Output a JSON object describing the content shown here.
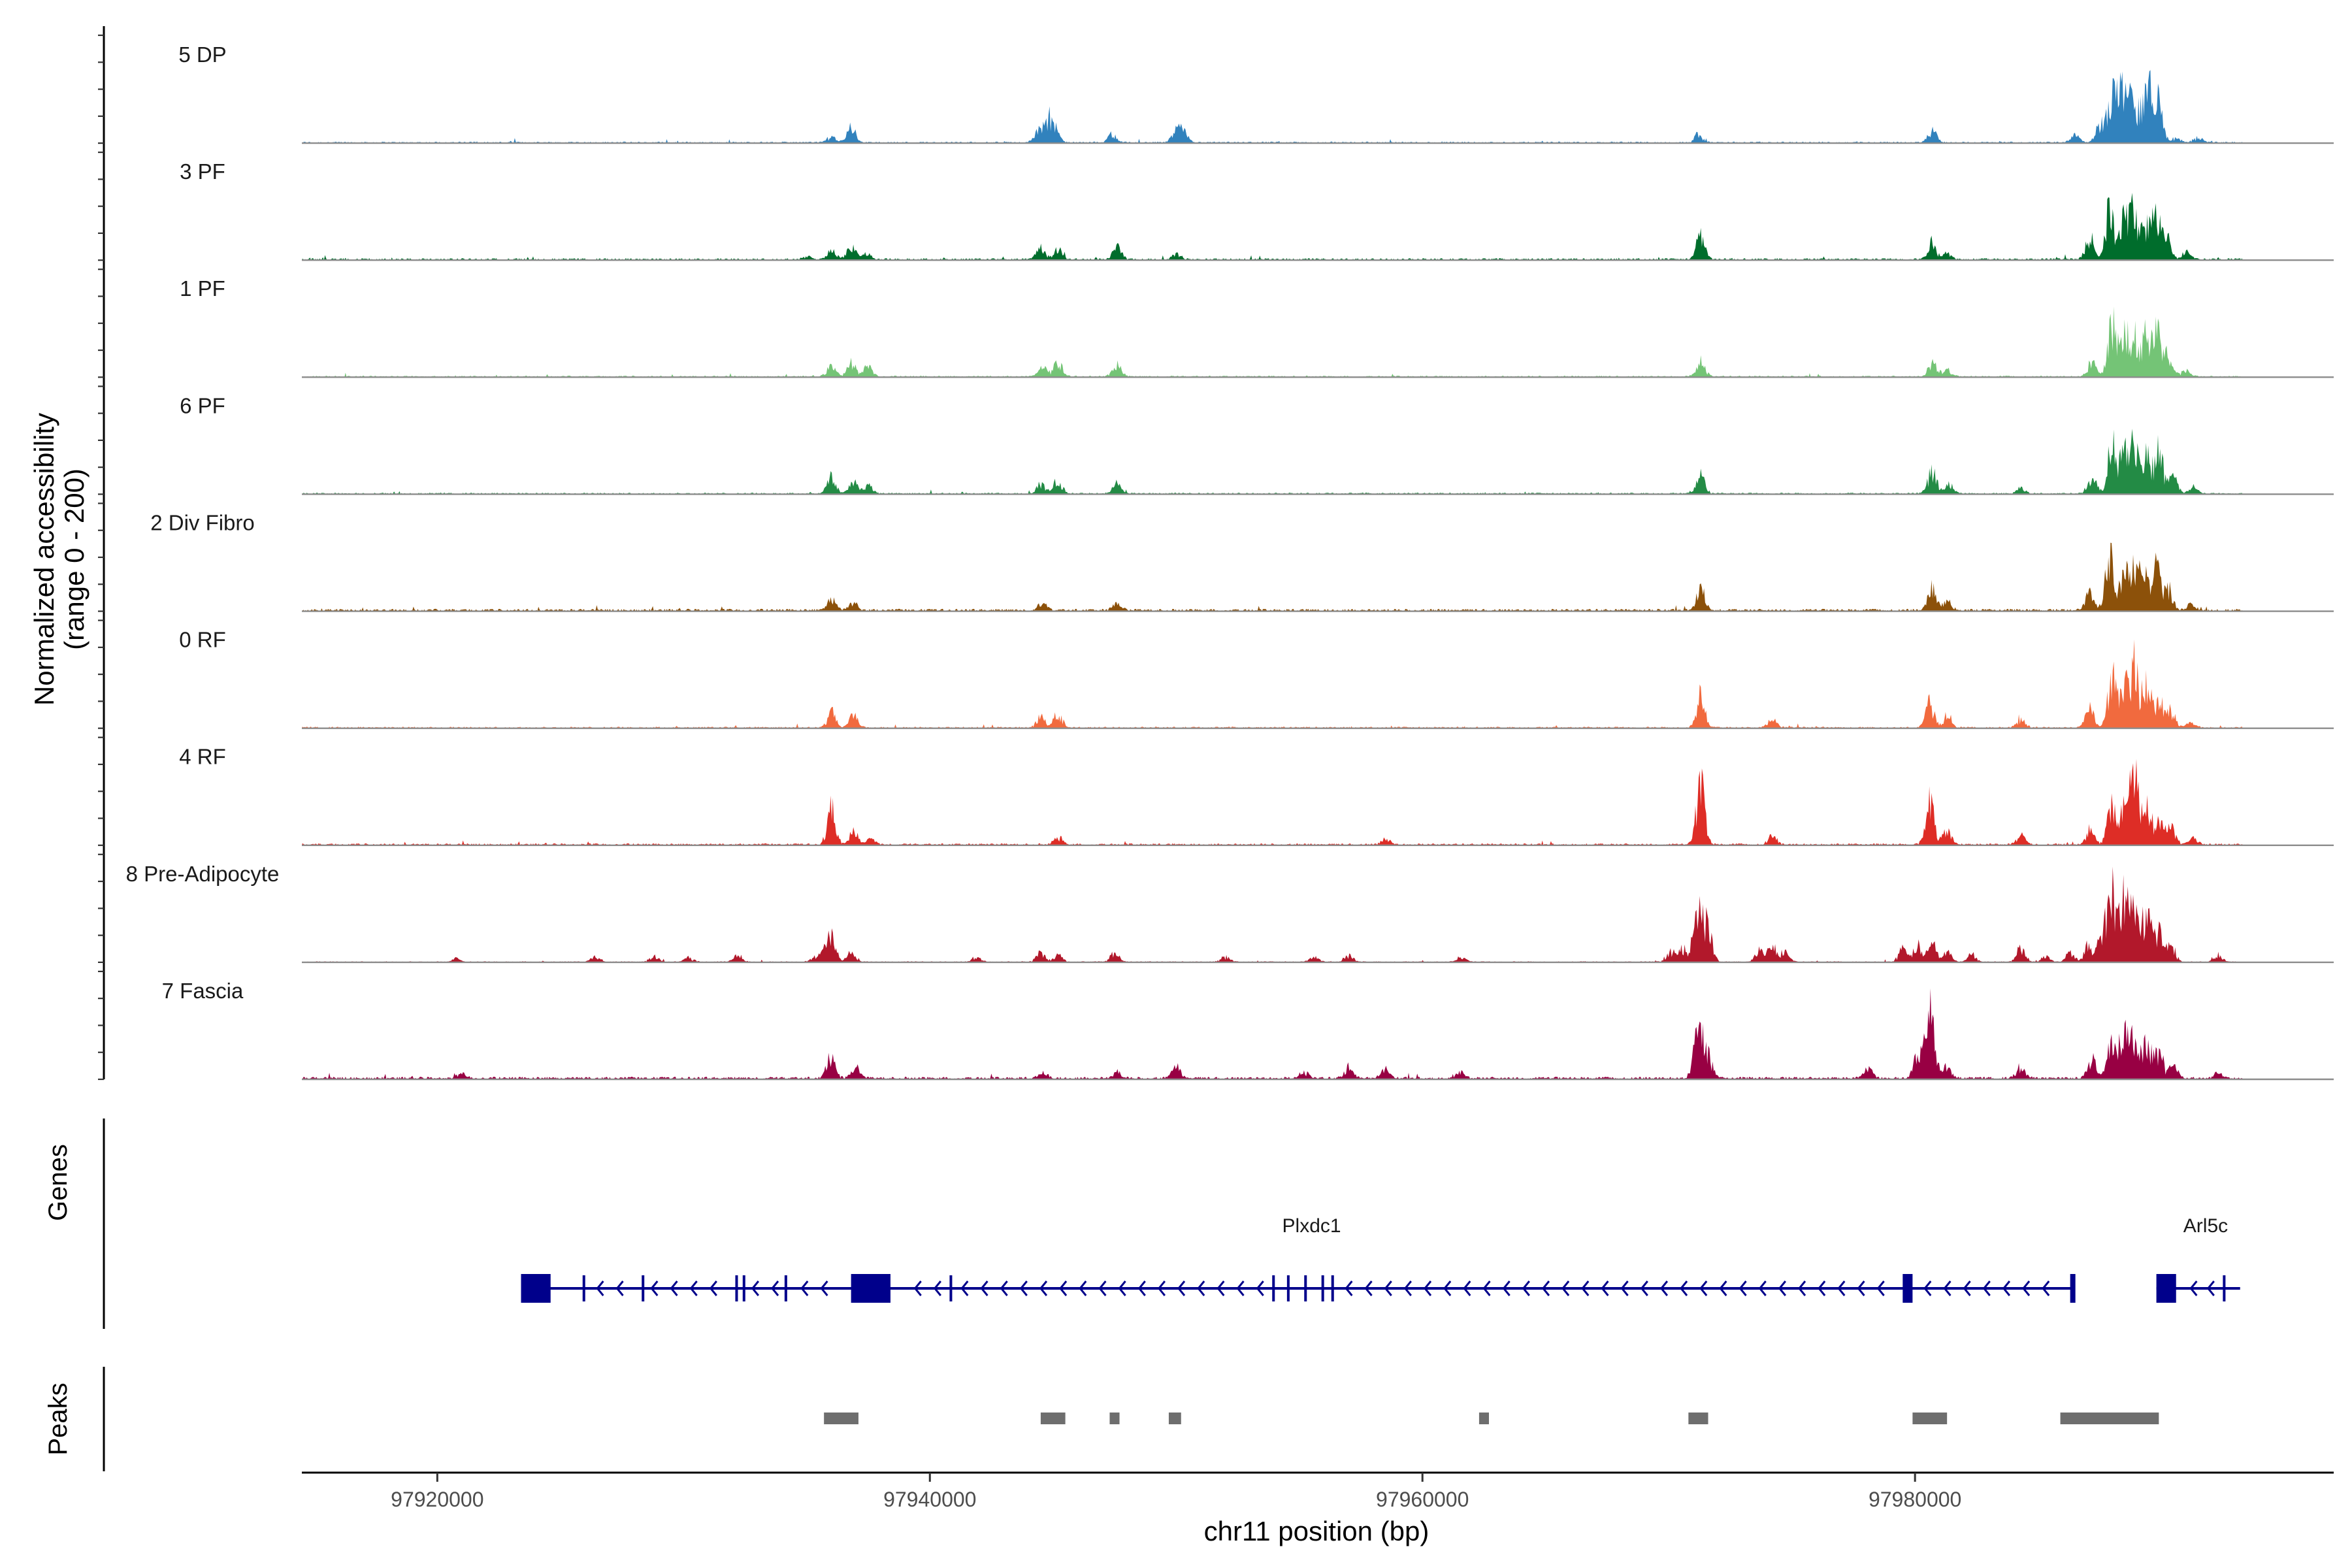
{
  "chart_data": {
    "type": "area",
    "xlabel": "chr11 position (bp)",
    "ylabel_line1": "Normalized accessibility",
    "ylabel_line2": "(range 0 - 200)",
    "y_range": [
      0,
      200
    ],
    "x_range": [
      97914500,
      97997000
    ],
    "x_ticks": [
      97920000,
      97940000,
      97960000,
      97980000
    ],
    "x_tick_labels": [
      "97920000",
      "97940000",
      "97960000",
      "97980000"
    ],
    "grid": false,
    "legend": "none",
    "panels": {
      "genes_title": "Genes",
      "peaks_title": "Peaks"
    },
    "series": [
      {
        "name": "5 DP",
        "color": "#3182bd",
        "noise": 0.9,
        "peaks": [
          [
            97936000,
            12
          ],
          [
            97936800,
            32
          ],
          [
            97944400,
            20
          ],
          [
            97944800,
            44
          ],
          [
            97945100,
            18
          ],
          [
            97947400,
            14
          ],
          [
            97950000,
            18
          ],
          [
            97950300,
            20
          ],
          [
            97971200,
            14
          ],
          [
            97980700,
            22
          ],
          [
            97986500,
            14
          ],
          [
            97987500,
            32
          ],
          [
            97988000,
            92
          ],
          [
            97988400,
            78
          ],
          [
            97988700,
            96
          ],
          [
            97989200,
            66
          ],
          [
            97989600,
            98
          ],
          [
            97989900,
            56
          ],
          [
            97990600,
            8
          ],
          [
            97991500,
            10
          ]
        ]
      },
      {
        "name": "3 PF",
        "color": "#006d2c",
        "noise": 1.1,
        "peaks": [
          [
            97935000,
            6
          ],
          [
            97936000,
            18
          ],
          [
            97936800,
            22
          ],
          [
            97937400,
            12
          ],
          [
            97944500,
            20
          ],
          [
            97945200,
            18
          ],
          [
            97947600,
            22
          ],
          [
            97950000,
            10
          ],
          [
            97971300,
            44
          ],
          [
            97980700,
            30
          ],
          [
            97981300,
            12
          ],
          [
            97987100,
            40
          ],
          [
            97987900,
            90
          ],
          [
            97988500,
            78
          ],
          [
            97988900,
            84
          ],
          [
            97989400,
            64
          ],
          [
            97989800,
            70
          ],
          [
            97990200,
            44
          ],
          [
            97991000,
            14
          ]
        ]
      },
      {
        "name": "1 PF",
        "color": "#74c476",
        "noise": 0.9,
        "peaks": [
          [
            97936000,
            20
          ],
          [
            97936800,
            26
          ],
          [
            97937500,
            22
          ],
          [
            97944600,
            18
          ],
          [
            97945200,
            28
          ],
          [
            97947600,
            22
          ],
          [
            97971300,
            30
          ],
          [
            97980700,
            26
          ],
          [
            97981300,
            12
          ],
          [
            97987200,
            28
          ],
          [
            97988000,
            96
          ],
          [
            97988500,
            80
          ],
          [
            97988900,
            76
          ],
          [
            97989400,
            74
          ],
          [
            97989800,
            86
          ],
          [
            97990300,
            40
          ],
          [
            97991000,
            12
          ]
        ]
      },
      {
        "name": "6 PF",
        "color": "#238b45",
        "noise": 0.9,
        "peaks": [
          [
            97936000,
            30
          ],
          [
            97936900,
            24
          ],
          [
            97937500,
            16
          ],
          [
            97944500,
            18
          ],
          [
            97945200,
            24
          ],
          [
            97947600,
            18
          ],
          [
            97971300,
            34
          ],
          [
            97980700,
            42
          ],
          [
            97981400,
            16
          ],
          [
            97984300,
            10
          ],
          [
            97987200,
            28
          ],
          [
            97988000,
            90
          ],
          [
            97988500,
            72
          ],
          [
            97988900,
            80
          ],
          [
            97989400,
            66
          ],
          [
            97989900,
            84
          ],
          [
            97990500,
            30
          ],
          [
            97991300,
            12
          ]
        ]
      },
      {
        "name": "2 Div Fibro",
        "color": "#8c510a",
        "noise": 1.4,
        "peaks": [
          [
            97936000,
            20
          ],
          [
            97936900,
            14
          ],
          [
            97944600,
            14
          ],
          [
            97947600,
            12
          ],
          [
            97971300,
            42
          ],
          [
            97980700,
            40
          ],
          [
            97981300,
            16
          ],
          [
            97987100,
            34
          ],
          [
            97987900,
            96
          ],
          [
            97988500,
            76
          ],
          [
            97988900,
            72
          ],
          [
            97989300,
            68
          ],
          [
            97989800,
            74
          ],
          [
            97990300,
            38
          ],
          [
            97991200,
            10
          ]
        ]
      },
      {
        "name": "0 RF",
        "color": "#f16a3e",
        "noise": 0.9,
        "peaks": [
          [
            97936000,
            28
          ],
          [
            97936900,
            22
          ],
          [
            97944500,
            18
          ],
          [
            97945200,
            28
          ],
          [
            97971300,
            62
          ],
          [
            97974200,
            16
          ],
          [
            97980600,
            44
          ],
          [
            97981300,
            22
          ],
          [
            97984300,
            16
          ],
          [
            97987100,
            36
          ],
          [
            97988000,
            92
          ],
          [
            97988500,
            76
          ],
          [
            97988900,
            110
          ],
          [
            97989400,
            86
          ],
          [
            97989900,
            52
          ],
          [
            97990400,
            30
          ],
          [
            97991200,
            10
          ]
        ]
      },
      {
        "name": "4 RF",
        "color": "#de2d26",
        "noise": 1.1,
        "peaks": [
          [
            97936000,
            64
          ],
          [
            97936900,
            24
          ],
          [
            97937600,
            10
          ],
          [
            97945200,
            14
          ],
          [
            97958500,
            10
          ],
          [
            97971300,
            116
          ],
          [
            97974200,
            16
          ],
          [
            97980600,
            78
          ],
          [
            97981300,
            26
          ],
          [
            97984300,
            16
          ],
          [
            97987100,
            28
          ],
          [
            97988000,
            80
          ],
          [
            97988500,
            66
          ],
          [
            97988900,
            122
          ],
          [
            97989400,
            76
          ],
          [
            97989900,
            52
          ],
          [
            97990400,
            30
          ],
          [
            97991300,
            12
          ]
        ]
      },
      {
        "name": "8 Pre-Adipocyte",
        "color": "#b2182b",
        "noise": 0.6,
        "peaks": [
          [
            97920800,
            6
          ],
          [
            97926400,
            10
          ],
          [
            97928800,
            10
          ],
          [
            97930200,
            8
          ],
          [
            97932200,
            12
          ],
          [
            97935300,
            8
          ],
          [
            97935700,
            14
          ],
          [
            97936000,
            46
          ],
          [
            97936800,
            16
          ],
          [
            97941900,
            10
          ],
          [
            97944500,
            16
          ],
          [
            97945200,
            12
          ],
          [
            97947500,
            18
          ],
          [
            97952000,
            10
          ],
          [
            97955600,
            10
          ],
          [
            97957000,
            12
          ],
          [
            97961600,
            10
          ],
          [
            97970100,
            18
          ],
          [
            97970600,
            24
          ],
          [
            97971200,
            120
          ],
          [
            97971600,
            56
          ],
          [
            97973700,
            22
          ],
          [
            97974200,
            28
          ],
          [
            97974700,
            18
          ],
          [
            97979500,
            22
          ],
          [
            97980100,
            30
          ],
          [
            97980700,
            34
          ],
          [
            97981300,
            18
          ],
          [
            97982300,
            14
          ],
          [
            97984300,
            28
          ],
          [
            97985300,
            10
          ],
          [
            97986300,
            16
          ],
          [
            97987000,
            26
          ],
          [
            97987600,
            56
          ],
          [
            97988000,
            128
          ],
          [
            97988500,
            112
          ],
          [
            97988900,
            104
          ],
          [
            97989400,
            90
          ],
          [
            97989900,
            58
          ],
          [
            97990400,
            30
          ],
          [
            97992300,
            14
          ]
        ]
      },
      {
        "name": "7 Fascia",
        "color": "#980043",
        "noise": 1.5,
        "peaks": [
          [
            97921000,
            8
          ],
          [
            97936000,
            46
          ],
          [
            97937000,
            20
          ],
          [
            97944600,
            10
          ],
          [
            97947600,
            12
          ],
          [
            97950000,
            20
          ],
          [
            97955200,
            12
          ],
          [
            97957000,
            22
          ],
          [
            97958500,
            18
          ],
          [
            97961500,
            12
          ],
          [
            97971200,
            106
          ],
          [
            97971600,
            40
          ],
          [
            97978100,
            20
          ],
          [
            97980100,
            40
          ],
          [
            97980600,
            126
          ],
          [
            97981300,
            28
          ],
          [
            97984300,
            24
          ],
          [
            97987200,
            42
          ],
          [
            97988000,
            92
          ],
          [
            97988500,
            86
          ],
          [
            97988900,
            68
          ],
          [
            97989400,
            74
          ],
          [
            97989900,
            50
          ],
          [
            97990500,
            22
          ],
          [
            97992300,
            10
          ]
        ]
      }
    ],
    "genes": [
      {
        "name": "Plxdc1",
        "label_x": 97955500,
        "line": [
          97923400,
          97986500
        ],
        "blocks": [
          [
            97923400,
            97924600,
            "big"
          ],
          [
            97936800,
            97938400,
            "big"
          ],
          [
            97979500,
            97979900,
            "big"
          ],
          [
            97986300,
            97986500,
            "big"
          ],
          [
            97925900,
            97926000,
            "small"
          ],
          [
            97928300,
            97928400,
            "small"
          ],
          [
            97932100,
            97932200,
            "small"
          ],
          [
            97932400,
            97932500,
            "small"
          ],
          [
            97934100,
            97934200,
            "small"
          ],
          [
            97940800,
            97940900,
            "small"
          ],
          [
            97953900,
            97954000,
            "small"
          ],
          [
            97954500,
            97954600,
            "small"
          ],
          [
            97955200,
            97955300,
            "small"
          ],
          [
            97955900,
            97956000,
            "small"
          ],
          [
            97956300,
            97956400,
            "small"
          ]
        ],
        "arrows": [
          97926500,
          97927300,
          97928700,
          97929500,
          97930300,
          97931100,
          97932800,
          97933600,
          97934800,
          97935600,
          97939400,
          97940200,
          97941300,
          97942100,
          97942900,
          97943700,
          97944500,
          97945300,
          97946100,
          97946900,
          97947700,
          97948500,
          97949300,
          97950100,
          97950900,
          97951700,
          97952500,
          97953300,
          97956900,
          97957700,
          97958500,
          97959300,
          97960100,
          97960900,
          97961700,
          97962500,
          97963300,
          97964100,
          97964900,
          97965700,
          97966500,
          97967300,
          97968100,
          97968900,
          97969700,
          97970500,
          97971300,
          97972100,
          97972900,
          97973700,
          97974500,
          97975300,
          97976100,
          97976900,
          97977700,
          97978500,
          97980400,
          97981200,
          97982000,
          97982800,
          97983600,
          97984400,
          97985200
        ]
      },
      {
        "name": "Arl5c",
        "label_x": 97991800,
        "line": [
          97989800,
          97993200
        ],
        "blocks": [
          [
            97989800,
            97990600,
            "big"
          ],
          [
            97992500,
            97992600,
            "small"
          ]
        ],
        "arrows": [
          97991200,
          97991900
        ]
      }
    ],
    "peaks_regions": [
      [
        97935700,
        97937100
      ],
      [
        97944500,
        97945500
      ],
      [
        97947300,
        97947700
      ],
      [
        97949700,
        97950200
      ],
      [
        97962300,
        97962700
      ],
      [
        97970800,
        97971600
      ],
      [
        97979900,
        97981300
      ],
      [
        97985900,
        97989900
      ]
    ]
  }
}
